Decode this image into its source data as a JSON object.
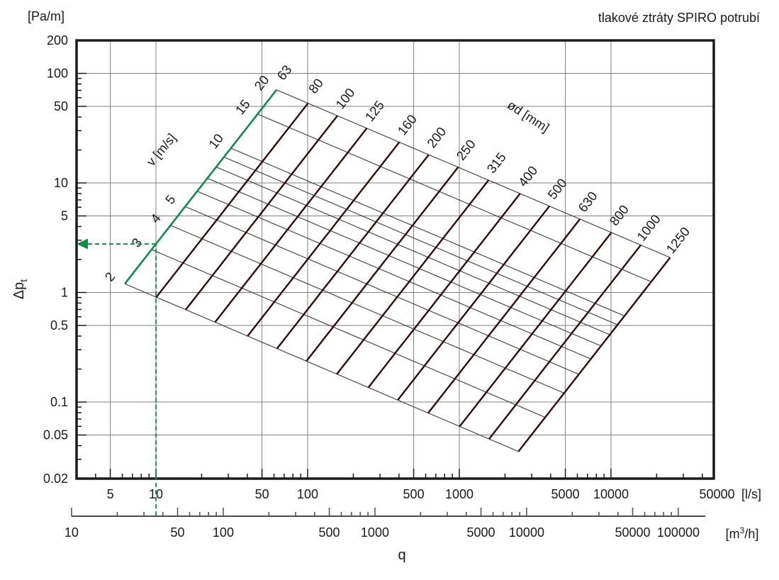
{
  "title": "tlakové ztráty SPIRO potrubí",
  "labels": {
    "y_unit": "[Pa/m]",
    "y_title_main": "Δp",
    "y_title_sub": "t",
    "x_title": "q",
    "x_unit_primary": "[l/s]",
    "x_unit_secondary_pre": "[m",
    "x_unit_secondary_sup": "3",
    "x_unit_secondary_post": "/h]",
    "velocity": "v [m/s]",
    "diameter": "ød [mm]"
  },
  "chart_data": {
    "type": "line",
    "title": "tlakové ztráty SPIRO potrubí",
    "x_axis_primary": {
      "title": "q",
      "unit": "[l/s]",
      "scale": "log",
      "min": 3,
      "max": 47600,
      "labeled_ticks": [
        5,
        10,
        50,
        100,
        500,
        1000,
        5000,
        10000,
        50000
      ],
      "gridlines": [
        5,
        10,
        50,
        100,
        500,
        1000,
        5000,
        10000
      ]
    },
    "x_axis_secondary": {
      "unit": "[m³/h]",
      "scale": "log",
      "min": 10,
      "max": 150000,
      "labeled_ticks": [
        10,
        50,
        100,
        500,
        1000,
        5000,
        10000,
        50000,
        100000
      ],
      "conversion_factor_from_ls": 3.6
    },
    "y_axis": {
      "title": "Δpt",
      "unit": "[Pa/m]",
      "scale": "log",
      "min": 0.02,
      "max": 200,
      "labeled_ticks": [
        200,
        100,
        50,
        10,
        5,
        1,
        0.5,
        0.1,
        0.05,
        0.02
      ],
      "gridlines": [
        100,
        50,
        10,
        5,
        1,
        0.5,
        0.1,
        0.05
      ]
    },
    "diameter_axis_label": "ød [mm]",
    "diameter_lines_mm": [
      63,
      80,
      100,
      125,
      160,
      200,
      250,
      315,
      400,
      500,
      630,
      800,
      1000,
      1250
    ],
    "velocity_axis_label": "v [m/s]",
    "velocity_lines_ms": [
      2,
      3,
      4,
      5,
      6,
      7,
      8,
      9,
      10,
      15,
      20
    ],
    "velocity_labeled_ms": [
      2,
      3,
      4,
      5,
      10,
      15,
      20
    ],
    "highlight_diameter_mm": 63,
    "example": {
      "q_ls": 10,
      "dp_pa_per_m": 2.8,
      "on_diameter_mm": 63,
      "at_velocity_ms": 3
    },
    "colors": {
      "diameter_line": "#310d08",
      "velocity_line": "#3a3a3a",
      "grid": "#808080",
      "frame": "#1a1a1a",
      "highlight_green": "#0d8c47",
      "text": "#1a1a1a",
      "secondary_axis": "#4d4d4d"
    }
  }
}
